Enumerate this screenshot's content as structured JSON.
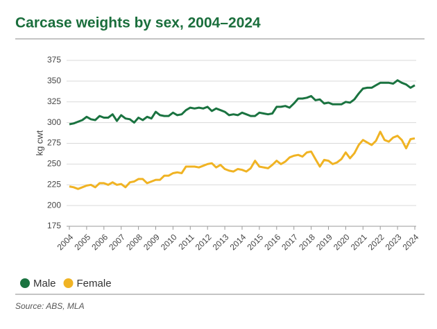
{
  "chart_data": {
    "type": "line",
    "title": "Carcase weights by sex, 2004–2024",
    "y_label": "kg cwt",
    "source": "Source: ABS, MLA",
    "categories": [
      "2004",
      null,
      null,
      null,
      "2005",
      null,
      null,
      null,
      "2006",
      null,
      null,
      null,
      "2007",
      null,
      null,
      null,
      "2008",
      null,
      null,
      null,
      "2009",
      null,
      null,
      null,
      "2010",
      null,
      null,
      null,
      "2011",
      null,
      null,
      null,
      "2012",
      null,
      null,
      null,
      "2013",
      null,
      null,
      null,
      "2014",
      null,
      null,
      null,
      "2015",
      null,
      null,
      null,
      "2016",
      null,
      null,
      null,
      "2017",
      null,
      null,
      null,
      "2018",
      null,
      null,
      null,
      "2019",
      null,
      null,
      null,
      "2020",
      null,
      null,
      null,
      "2021",
      null,
      null,
      null,
      "2022",
      null,
      null,
      null,
      "2023",
      null,
      null,
      null,
      "2024"
    ],
    "series": [
      {
        "name": "Male",
        "color": "#1a7340",
        "values": [
          298,
          299,
          301,
          303,
          307,
          304,
          303,
          308,
          306,
          306,
          310,
          302,
          309,
          305,
          304,
          300,
          306,
          303,
          307,
          305,
          313,
          309,
          308,
          308,
          312,
          309,
          310,
          315,
          318,
          317,
          318,
          317,
          319,
          314,
          317,
          315,
          313,
          309,
          310,
          309,
          312,
          310,
          308,
          308,
          312,
          311,
          310,
          311,
          319,
          319,
          320,
          318,
          323,
          329,
          329,
          330,
          332,
          327,
          328,
          323,
          324,
          322,
          322,
          322,
          325,
          324,
          328,
          335,
          341,
          342,
          342,
          345,
          348,
          348,
          348,
          347,
          351,
          348,
          346,
          342,
          345
        ]
      },
      {
        "name": "Female",
        "color": "#f0b323",
        "values": [
          223,
          222,
          220,
          222,
          224,
          225,
          222,
          227,
          227,
          225,
          228,
          225,
          226,
          222,
          228,
          229,
          232,
          232,
          227,
          229,
          231,
          231,
          236,
          236,
          239,
          240,
          239,
          247,
          247,
          247,
          246,
          248,
          250,
          251,
          246,
          249,
          244,
          242,
          241,
          244,
          243,
          241,
          245,
          254,
          247,
          246,
          245,
          249,
          254,
          250,
          253,
          258,
          260,
          261,
          259,
          264,
          265,
          256,
          247,
          255,
          254,
          250,
          252,
          256,
          264,
          257,
          263,
          273,
          279,
          276,
          273,
          278,
          289,
          279,
          277,
          282,
          284,
          279,
          269,
          280,
          281
        ]
      }
    ],
    "ylim": [
      175,
      375
    ],
    "yticks": [
      175,
      200,
      225,
      250,
      275,
      300,
      325,
      350,
      375
    ],
    "grid": true
  }
}
